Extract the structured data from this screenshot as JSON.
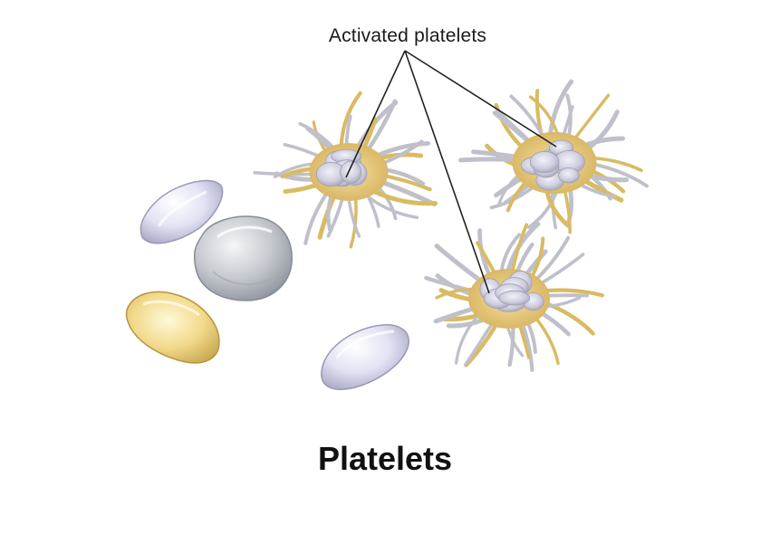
{
  "diagram": {
    "callout_label": "Activated platelets",
    "caption": "Platelets"
  },
  "colors": {
    "resting_lavender": "#dcdcf2",
    "resting_grey": "#c9ccd2",
    "resting_yellow": "#f3dc8a",
    "activated_body": "#d6d6e6",
    "activated_yellow": "#e6c870",
    "pseudopod": "#c8c8d0",
    "leader_line": "#222222"
  }
}
